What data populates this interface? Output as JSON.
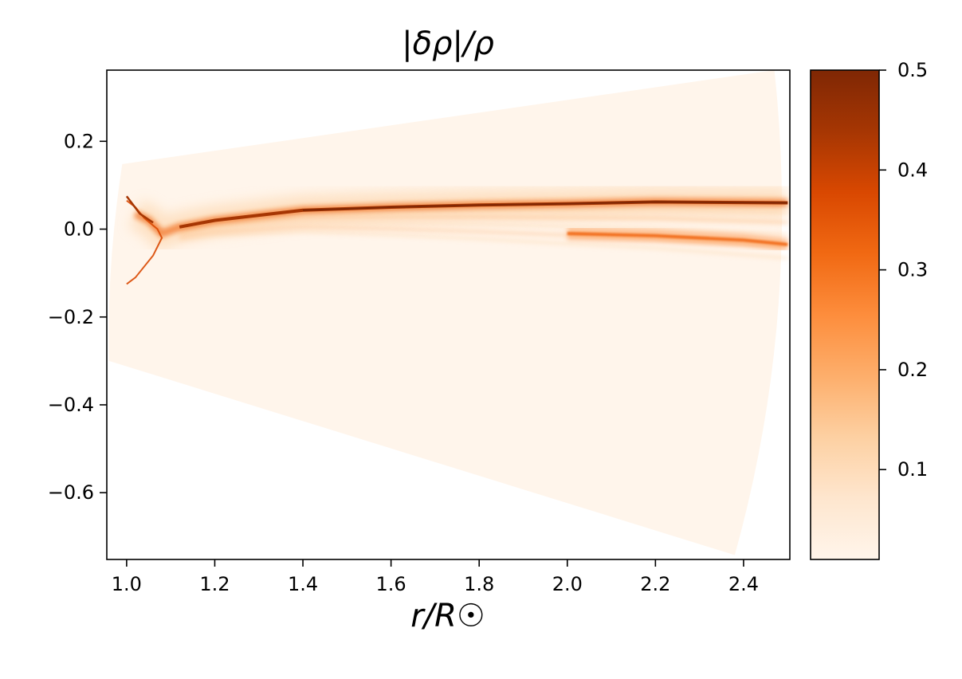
{
  "chart_data": {
    "type": "heatmap",
    "title": "|δρ|/ρ",
    "xlabel": "r/R☉",
    "ylabel": "",
    "xlim": [
      0.955,
      2.505
    ],
    "ylim": [
      -0.752,
      0.362
    ],
    "xticks": [
      1.0,
      1.2,
      1.4,
      1.6,
      1.8,
      2.0,
      2.2,
      2.4
    ],
    "xtick_labels": [
      "1.0",
      "1.2",
      "1.4",
      "1.6",
      "1.8",
      "2.0",
      "2.2",
      "2.4"
    ],
    "yticks": [
      0.2,
      0.0,
      -0.2,
      -0.4,
      -0.6
    ],
    "ytick_labels": [
      "0.2",
      "0.0",
      "−0.2",
      "−0.4",
      "−0.6"
    ],
    "grid": false,
    "colormap": "Oranges",
    "colorbar": {
      "range": [
        0.01,
        0.5
      ],
      "ticks": [
        0.1,
        0.2,
        0.3,
        0.4,
        0.5
      ],
      "tick_labels": [
        "0.1",
        "0.2",
        "0.3",
        "0.4",
        "0.5"
      ]
    },
    "colormap_stops": [
      "#fff5eb",
      "#fee6ce",
      "#fdd0a2",
      "#fdae6b",
      "#fd8d3c",
      "#f16913",
      "#d94801",
      "#a63603",
      "#7f2704"
    ],
    "features": {
      "wedge_upper_edge": [
        [
          0.99,
          0.148
        ],
        [
          2.47,
          0.362
        ]
      ],
      "wedge_lower_edge": [
        [
          0.96,
          -0.3
        ],
        [
          2.38,
          -0.742
        ]
      ],
      "current_sheet": [
        [
          1.02,
          0.035
        ],
        [
          1.05,
          0.02
        ],
        [
          1.08,
          -0.01
        ],
        [
          1.12,
          0.005
        ],
        [
          1.2,
          0.02
        ],
        [
          1.4,
          0.043
        ],
        [
          1.6,
          0.05
        ],
        [
          1.8,
          0.055
        ],
        [
          2.0,
          0.058
        ],
        [
          2.2,
          0.062
        ],
        [
          2.5,
          0.06
        ]
      ],
      "lower_streamer": [
        [
          2.0,
          -0.01
        ],
        [
          2.2,
          -0.015
        ],
        [
          2.4,
          -0.025
        ],
        [
          2.5,
          -0.035
        ]
      ]
    }
  }
}
